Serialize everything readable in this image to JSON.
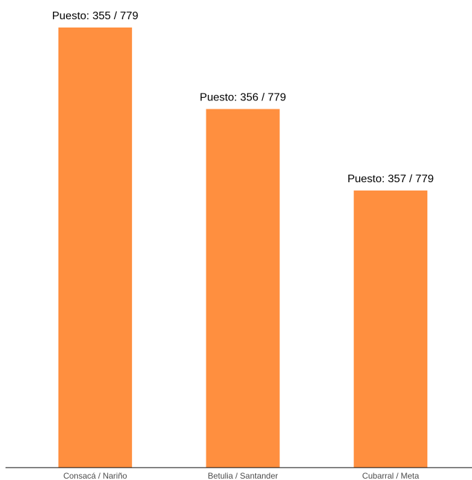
{
  "colors": {
    "bar": "#FF8F3F",
    "axis": "#000000",
    "label": "#000000",
    "tick": "#4d4d4d",
    "background": "#ffffff"
  },
  "chart_data": {
    "type": "bar",
    "title": "",
    "xlabel": "",
    "ylabel": "",
    "categories": [
      "Consacá / Nariño",
      "Betulia / Santander",
      "Cubarral / Meta"
    ],
    "values": [
      424,
      423,
      422
    ],
    "data_labels": [
      "Puesto: 355 / 779",
      "Puesto: 356 / 779",
      "Puesto: 357 / 779"
    ],
    "ylim": [
      418.6,
      424
    ],
    "grid": false,
    "legend": "none"
  }
}
